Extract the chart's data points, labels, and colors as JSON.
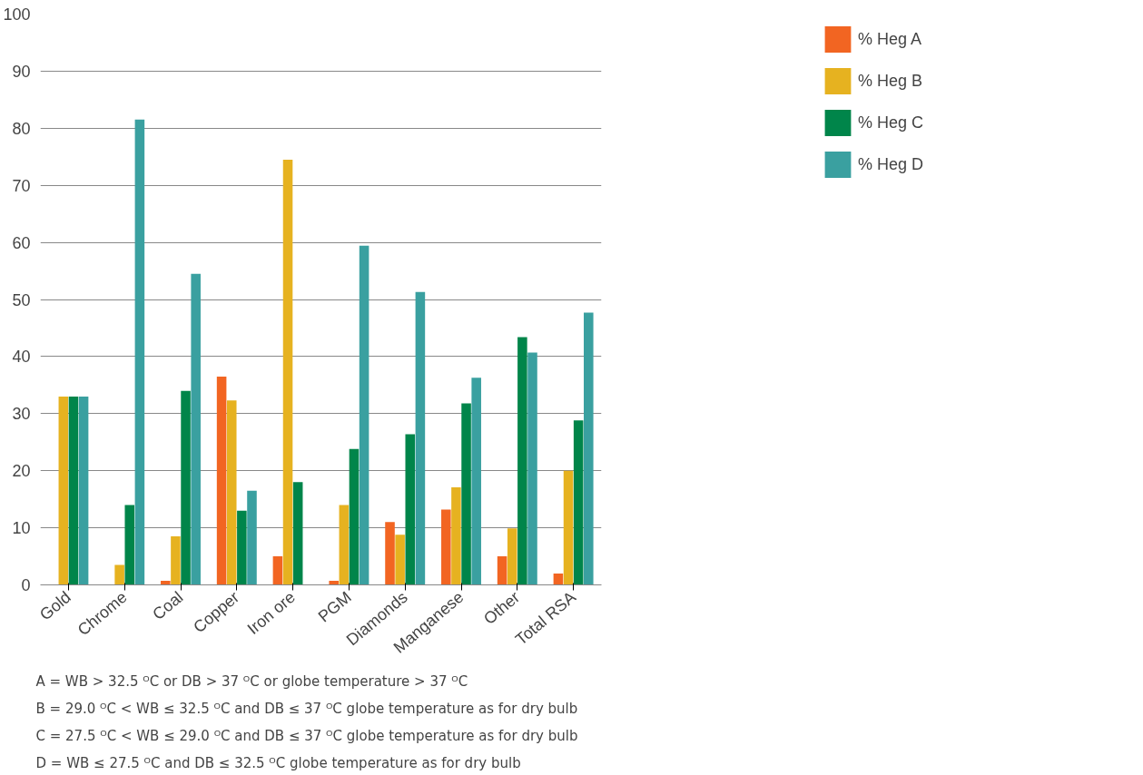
{
  "chart_data": {
    "type": "bar",
    "categories": [
      "Gold",
      "Chrome",
      "Coal",
      "Copper",
      "Iron ore",
      "PGM",
      "Diamonds",
      "Manganese",
      "Other",
      "Total RSA"
    ],
    "series": [
      {
        "name": "% Heg A",
        "color": "#f26522",
        "values": [
          0,
          0,
          0.7,
          36.5,
          5,
          0.7,
          11,
          13.2,
          5,
          2
        ]
      },
      {
        "name": "% Heg B",
        "color": "#e6b220",
        "values": [
          33,
          3.5,
          8.5,
          32.3,
          74.5,
          14,
          8.8,
          17.1,
          9.9,
          20
        ]
      },
      {
        "name": "% Heg C",
        "color": "#00854a",
        "values": [
          33,
          14,
          34,
          13,
          18,
          23.8,
          26.4,
          31.8,
          43.4,
          28.8
        ]
      },
      {
        "name": "% Heg D",
        "color": "#3aa0a0",
        "values": [
          33,
          81.5,
          54.5,
          16.5,
          0,
          59.4,
          51.3,
          36.3,
          40.7,
          47.7
        ]
      }
    ],
    "ylim": [
      0,
      100
    ],
    "yticks": [
      0,
      10,
      20,
      30,
      40,
      50,
      60,
      70,
      80,
      90,
      100
    ],
    "grid": "y",
    "legend": "top right",
    "annotations": [
      "A = WB > 32.5 ᴼC or DB > 37 ᴼC or globe temperature > 37 ᴼC",
      "B = 29.0 ᴼC <  WB ≤ 32.5 ᴼC and DB ≤ 37 ᴼC globe temperature as for dry bulb",
      "C = 27.5 ᴼC < WB ≤ 29.0 ᴼC and DB ≤ 37 ᴼC globe temperature as for dry bulb",
      "D = WB ≤ 27.5 ᴼC and DB ≤ 32.5 ᴼC globe temperature as for dry bulb"
    ]
  }
}
